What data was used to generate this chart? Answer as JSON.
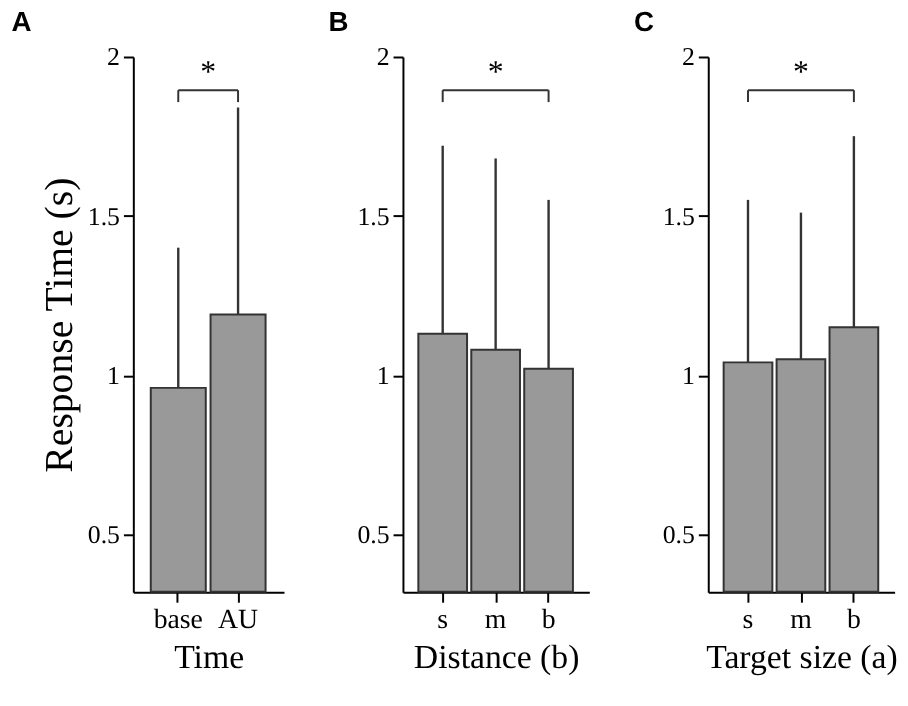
{
  "chart_data": [
    {
      "type": "bar",
      "title": "A",
      "xlabel": "Time",
      "ylabel": "Response Time (s)",
      "categories": [
        "base",
        "AU"
      ],
      "values": [
        0.96,
        1.19
      ],
      "errors": [
        [
          0.96,
          1.4
        ],
        [
          1.19,
          1.84
        ]
      ],
      "color": "#999999",
      "ylim": [
        0.32,
        2
      ],
      "yticks": [
        0.5,
        1,
        1.5,
        2
      ],
      "grid": false,
      "annotations": [
        "*"
      ]
    },
    {
      "type": "bar",
      "title": "B",
      "xlabel": "Distance (b)",
      "categories": [
        "s",
        "m",
        "b"
      ],
      "values": [
        1.13,
        1.08,
        1.02
      ],
      "errors": [
        [
          1.13,
          1.72
        ],
        [
          1.08,
          1.68
        ],
        [
          1.02,
          1.55
        ]
      ],
      "color": "#999999",
      "ylim": [
        0.32,
        2
      ],
      "yticks": [
        0.5,
        1,
        1.5,
        2
      ],
      "grid": false,
      "annotations": [
        "*"
      ]
    },
    {
      "type": "bar",
      "title": "C",
      "xlabel": "Target size (a)",
      "categories": [
        "s",
        "m",
        "b"
      ],
      "values": [
        1.04,
        1.05,
        1.15
      ],
      "errors": [
        [
          1.04,
          1.55
        ],
        [
          1.05,
          1.51
        ],
        [
          1.15,
          1.75
        ]
      ],
      "color": "#999999",
      "ylim": [
        0.32,
        2
      ],
      "yticks": [
        0.5,
        1,
        1.5,
        2
      ],
      "grid": false,
      "annotations": [
        "*"
      ]
    }
  ]
}
